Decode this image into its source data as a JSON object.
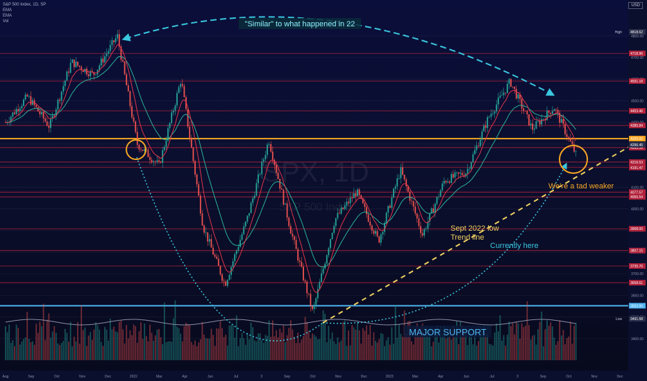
{
  "header": {
    "symbol": "S&P 500 Index, 1D, SP",
    "ind1": "EMA",
    "ind2": "EMA",
    "ind3": "Vol",
    "currency": "USD"
  },
  "watermark": {
    "symbol": "SPX, 1D",
    "name": "S&P 500 Index"
  },
  "annotations": {
    "similar": "\"Similar\" to what happened in 22",
    "weaker": "We're a tad weaker",
    "sept_low_1": "Sept 2022 low",
    "sept_low_2": "Trend line",
    "currently": "Currently here",
    "major_support": "MAJOR SUPPORT"
  },
  "colors": {
    "background": "#0b0f2e",
    "support_line": "#f5a623",
    "major_support_line": "#4fb3f0",
    "resistance_line": "#b0213a",
    "arc": "#3ac7e0",
    "trend_line": "#f0d060",
    "ema_fast": "#e2344a",
    "ema_slow": "#2bb39a",
    "candle_up": "#26a69a",
    "candle_down": "#ef5350"
  },
  "chart_data": {
    "type": "candlestick",
    "title": "S&P 500 Index, 1D, SP",
    "ylim": [
      3300,
      4950
    ],
    "x_axis_labels": [
      "Aug",
      "Sep",
      "Oct",
      "Nov",
      "Dec",
      "2022",
      "Mar",
      "Apr",
      "Jun",
      "Jul",
      "3",
      "Sep",
      "Oct",
      "Nov",
      "Dec",
      "2023",
      "Mar",
      "Apr",
      "Jun",
      "Jul",
      "3",
      "Sep",
      "Oct",
      "Nov",
      "Dec"
    ],
    "y_tick_labels": [
      "4800.00",
      "4700.00",
      "4600.00",
      "4500.00",
      "4400.00",
      "4300.00",
      "4200.00",
      "4100.00",
      "4000.00",
      "3900.00",
      "3800.00",
      "3700.00",
      "3600.00",
      "3500.00",
      "3400.00"
    ],
    "price_path": [
      {
        "t": "2021-08",
        "v": 4400
      },
      {
        "t": "2021-09",
        "v": 4520
      },
      {
        "t": "2021-10",
        "v": 4380
      },
      {
        "t": "2021-11",
        "v": 4680
      },
      {
        "t": "2021-12",
        "v": 4620
      },
      {
        "t": "2022-01-03",
        "v": 4800
      },
      {
        "t": "2022-02",
        "v": 4300
      },
      {
        "t": "2022-03",
        "v": 4200
      },
      {
        "t": "2022-04",
        "v": 4600
      },
      {
        "t": "2022-05",
        "v": 3920
      },
      {
        "t": "2022-06",
        "v": 3650
      },
      {
        "t": "2022-07",
        "v": 3950
      },
      {
        "t": "2022-08",
        "v": 4320
      },
      {
        "t": "2022-09",
        "v": 3900
      },
      {
        "t": "2022-10",
        "v": 3520
      },
      {
        "t": "2022-11",
        "v": 3950
      },
      {
        "t": "2022-12",
        "v": 4080
      },
      {
        "t": "2023-01",
        "v": 3850
      },
      {
        "t": "2023-02",
        "v": 4180
      },
      {
        "t": "2023-03",
        "v": 3880
      },
      {
        "t": "2023-04",
        "v": 4130
      },
      {
        "t": "2023-05",
        "v": 4170
      },
      {
        "t": "2023-06",
        "v": 4420
      },
      {
        "t": "2023-07",
        "v": 4590
      },
      {
        "t": "2023-08",
        "v": 4370
      },
      {
        "t": "2023-09",
        "v": 4470
      },
      {
        "t": "2023-10",
        "v": 4250
      }
    ],
    "horizontal_levels": [
      {
        "label": "4718.96",
        "price": 4718.96,
        "kind": "resistance"
      },
      {
        "label": "4591.18",
        "price": 4591.18,
        "kind": "resistance"
      },
      {
        "label": "4453.46",
        "price": 4453.46,
        "kind": "resistance"
      },
      {
        "label": "4385.84",
        "price": 4385.84,
        "kind": "resistance"
      },
      {
        "label": "4325.00",
        "price": 4325,
        "kind": "support"
      },
      {
        "label": "4283.39",
        "price": 4283.39,
        "kind": "resistance"
      },
      {
        "label": "4216.53",
        "price": 4216.53,
        "kind": "resistance"
      },
      {
        "label": "4191.47",
        "price": 4191.47,
        "kind": "resistance"
      },
      {
        "label": "4077.57",
        "price": 4077.57,
        "kind": "resistance"
      },
      {
        "label": "4055.54",
        "price": 4055.54,
        "kind": "resistance"
      },
      {
        "label": "3908.00",
        "price": 3908,
        "kind": "resistance"
      },
      {
        "label": "3807.15",
        "price": 3807.15,
        "kind": "resistance"
      },
      {
        "label": "3735.76",
        "price": 3735.76,
        "kind": "resistance"
      },
      {
        "label": "3658.61",
        "price": 3658.61,
        "kind": "resistance"
      },
      {
        "label": "3552.00",
        "price": 3552,
        "kind": "major_support"
      }
    ],
    "right_labels": [
      {
        "label": "High",
        "value": "4818.62",
        "price": 4818.62
      },
      {
        "label": "",
        "value": "4296.45",
        "price": 4296.45
      },
      {
        "label": "Low",
        "value": "3491.58",
        "price": 3491.58
      }
    ]
  }
}
